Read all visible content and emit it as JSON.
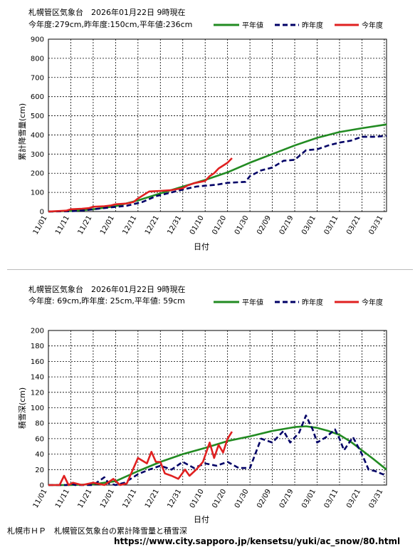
{
  "charts": [
    {
      "id": "cumulative",
      "title_line1": "札幌管区気象台　2026年01月22日 9時現在",
      "title_line2": "今年度:279cm,昨年度:150cm,平年値:236cm",
      "ylabel": "累計降雪量(cm)",
      "xlabel": "日付"
    },
    {
      "id": "depth",
      "title_line1": "札幌管区気象台　2026年01月22日 9時現在",
      "title_line2": "今年度: 69cm,昨年度: 25cm,平年値: 59cm",
      "ylabel": "積雪深(cm)",
      "xlabel": "日付"
    }
  ],
  "legend": {
    "normal": "平年値",
    "last_year": "昨年度",
    "this_year": "今年度"
  },
  "footer": {
    "left": "札幌市ＨＰ　札幌管区気象台の累計降雪量と積雪深",
    "url": "https://www.city.sapporo.jp/kensetsu/yuki/ac_snow/80.html"
  },
  "colors": {
    "normal": "#228b22",
    "last_year": "#000066",
    "this_year": "#e02020",
    "grid": "#000000"
  },
  "chart_data": [
    {
      "type": "line",
      "x_ticks": [
        "11/01",
        "11/11",
        "11/21",
        "12/01",
        "12/11",
        "12/21",
        "12/31",
        "01/10",
        "01/20",
        "01/30",
        "02/09",
        "02/19",
        "03/01",
        "03/11",
        "03/21",
        "03/31"
      ],
      "xlim_days": [
        0,
        151
      ],
      "ylim": [
        0,
        900
      ],
      "y_ticks": [
        0,
        100,
        200,
        300,
        400,
        500,
        600,
        700,
        800,
        900
      ],
      "series": [
        {
          "name": "平年値",
          "x_days": [
            0,
            10,
            20,
            30,
            40,
            50,
            60,
            70,
            80,
            90,
            100,
            110,
            120,
            130,
            140,
            151
          ],
          "values": [
            0,
            3,
            12,
            28,
            58,
            95,
            130,
            165,
            205,
            255,
            300,
            345,
            385,
            415,
            435,
            455
          ]
        },
        {
          "name": "昨年度",
          "x_days": [
            0,
            10,
            15,
            20,
            28,
            35,
            42,
            48,
            55,
            62,
            66,
            70,
            75,
            80,
            88,
            90,
            95,
            100,
            105,
            110,
            115,
            120,
            125,
            130,
            135,
            140,
            145,
            151
          ],
          "values": [
            0,
            2,
            5,
            12,
            22,
            30,
            50,
            80,
            100,
            120,
            130,
            135,
            140,
            150,
            155,
            185,
            215,
            230,
            265,
            270,
            320,
            325,
            345,
            360,
            370,
            390,
            390,
            395
          ]
        },
        {
          "name": "今年度",
          "x_days": [
            0,
            8,
            10,
            15,
            18,
            20,
            25,
            28,
            30,
            35,
            38,
            40,
            45,
            50,
            55,
            60,
            62,
            65,
            68,
            70,
            72,
            74,
            76,
            78,
            80,
            82
          ],
          "values": [
            0,
            5,
            12,
            15,
            18,
            25,
            28,
            32,
            38,
            42,
            50,
            68,
            105,
            108,
            112,
            122,
            135,
            148,
            155,
            160,
            185,
            200,
            225,
            240,
            255,
            279
          ]
        }
      ]
    },
    {
      "type": "line",
      "x_ticks": [
        "11/01",
        "11/11",
        "11/21",
        "12/01",
        "12/11",
        "12/21",
        "12/31",
        "01/10",
        "01/20",
        "01/30",
        "02/09",
        "02/19",
        "03/01",
        "03/11",
        "03/21",
        "03/31"
      ],
      "xlim_days": [
        0,
        151
      ],
      "ylim": [
        0,
        200
      ],
      "y_ticks": [
        0,
        20,
        40,
        60,
        80,
        100,
        120,
        140,
        160,
        180,
        200
      ],
      "series": [
        {
          "name": "平年値",
          "x_days": [
            0,
            10,
            20,
            30,
            40,
            50,
            60,
            70,
            80,
            90,
            100,
            110,
            115,
            120,
            125,
            130,
            135,
            140,
            145,
            151
          ],
          "values": [
            0,
            0,
            1,
            5,
            18,
            30,
            40,
            48,
            57,
            63,
            70,
            75,
            76,
            74,
            70,
            65,
            56,
            45,
            34,
            20
          ]
        },
        {
          "name": "昨年度",
          "x_days": [
            0,
            8,
            10,
            12,
            20,
            25,
            27,
            30,
            34,
            40,
            45,
            50,
            55,
            60,
            65,
            70,
            75,
            80,
            85,
            90,
            95,
            100,
            105,
            108,
            112,
            115,
            118,
            120,
            124,
            128,
            130,
            132,
            136,
            140,
            143,
            146,
            151
          ],
          "values": [
            0,
            0,
            2,
            0,
            0,
            10,
            2,
            0,
            3,
            14,
            20,
            25,
            20,
            30,
            22,
            28,
            25,
            30,
            22,
            22,
            60,
            55,
            70,
            55,
            68,
            90,
            72,
            55,
            62,
            72,
            60,
            45,
            62,
            40,
            20,
            18,
            12
          ]
        },
        {
          "name": "今年度",
          "x_days": [
            0,
            5,
            7,
            9,
            11,
            15,
            20,
            25,
            29,
            32,
            35,
            40,
            44,
            46,
            48,
            50,
            52,
            55,
            58,
            61,
            63,
            66,
            69,
            72,
            74,
            76,
            78,
            80,
            82
          ],
          "values": [
            0,
            0,
            12,
            0,
            3,
            0,
            3,
            0,
            8,
            0,
            2,
            35,
            28,
            43,
            30,
            30,
            15,
            12,
            8,
            20,
            12,
            20,
            30,
            55,
            35,
            52,
            42,
            60,
            69
          ]
        }
      ]
    }
  ]
}
